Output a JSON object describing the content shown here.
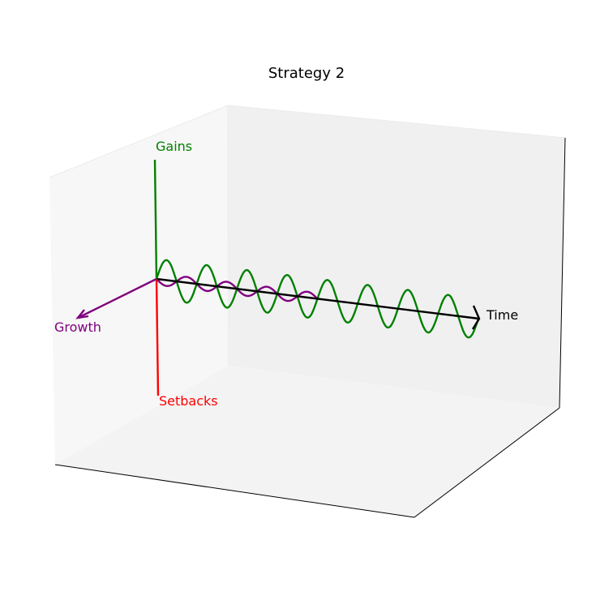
{
  "chart_data": {
    "type": "line",
    "title": "Strategy 2",
    "projection": "3d",
    "axes_visible": false,
    "grid": false,
    "colors": {
      "time": "#000000",
      "gains": "#008000",
      "setbacks": "#ff0000",
      "growth": "#800080",
      "pane_left": "#f7f7f7",
      "pane_back": "#f0f0f0",
      "pane_floor": "#f3f3f3"
    },
    "axis_arrows": [
      {
        "label": "Time",
        "color": "#000000"
      },
      {
        "label": "Gains",
        "color": "#008000"
      },
      {
        "label": "Setbacks",
        "color": "#ff0000"
      },
      {
        "label": "Growth",
        "color": "#800080"
      }
    ],
    "series": [
      {
        "color": "#008000",
        "function": "sin",
        "x_start": 0,
        "x_end": 50,
        "cycles": 8,
        "amplitude": 1
      },
      {
        "color": "#800080",
        "function": "sin",
        "x_start": 0,
        "x_end": 25,
        "cycles": 4,
        "amplitude": 1
      }
    ]
  }
}
